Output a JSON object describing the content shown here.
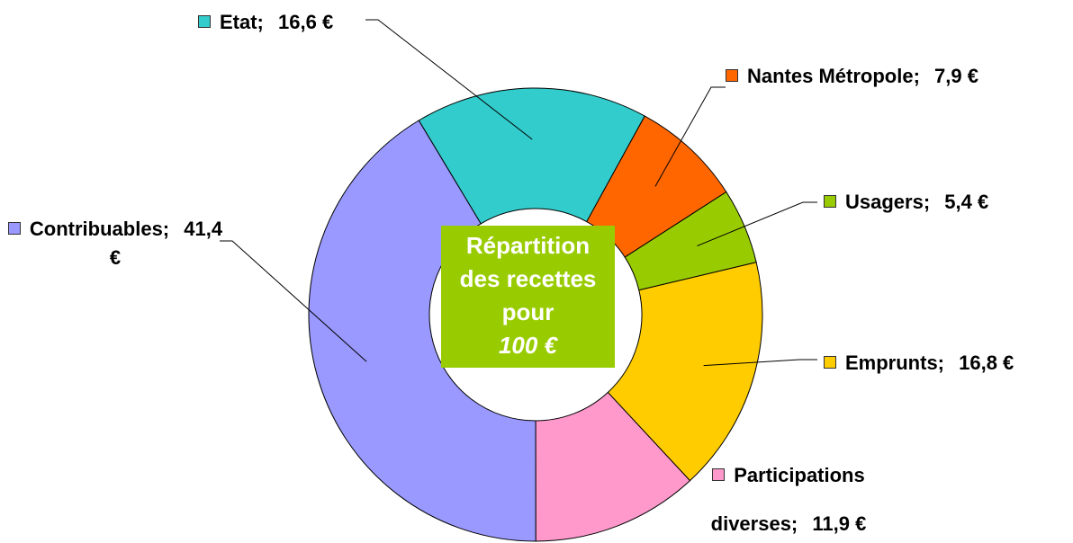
{
  "chart_data": {
    "type": "donut",
    "center_label": [
      "Répartition",
      "des recettes",
      "pour"
    ],
    "center_amount": "100 €",
    "categories": [
      "Etat;",
      "Nantes Métropole;",
      "Usagers;",
      "Emprunts;",
      "Participations diverses;",
      "Contribuables;"
    ],
    "values": [
      16.6,
      7.9,
      5.4,
      16.8,
      11.9,
      41.4
    ],
    "value_labels": [
      "16,6 €",
      "7,9 €",
      "5,4 €",
      "16,8 €",
      "11,9 €",
      "41,4 €"
    ],
    "colors": [
      "#33cccc",
      "#ff6600",
      "#99cc00",
      "#ffcc00",
      "#ff99cc",
      "#9999ff"
    ]
  }
}
